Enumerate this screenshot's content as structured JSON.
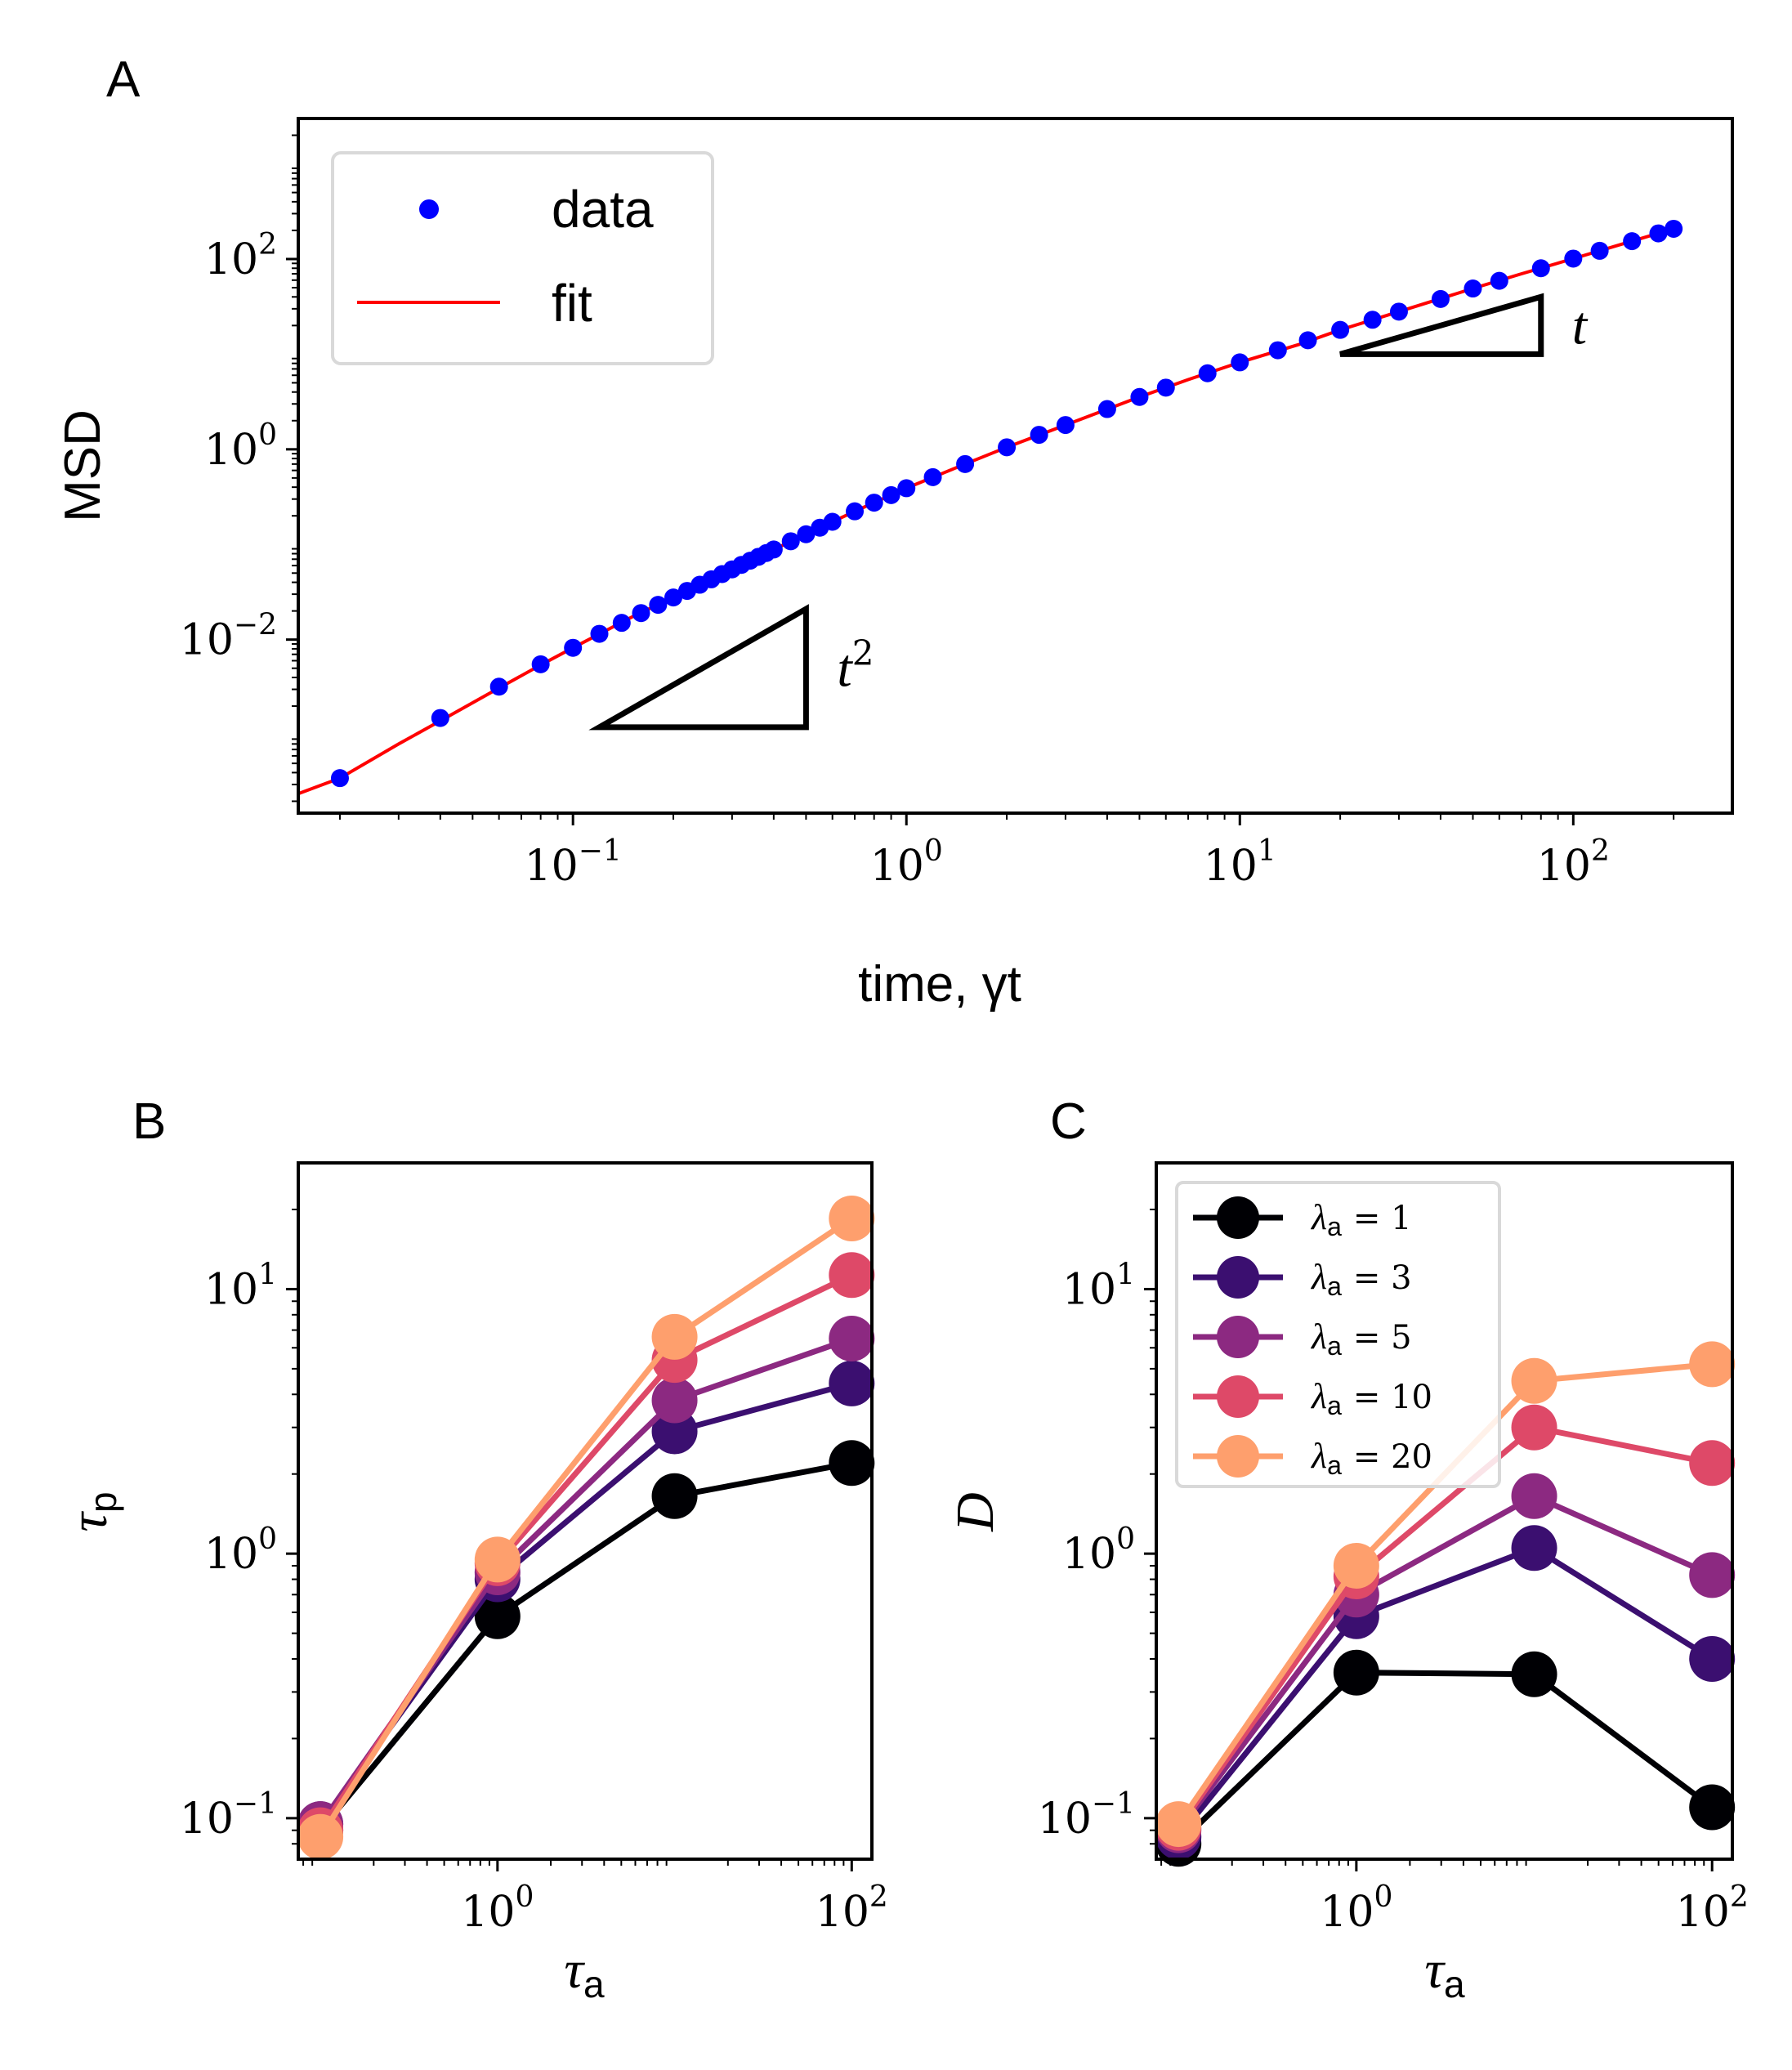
{
  "panel_labels": [
    "A",
    "B",
    "C"
  ],
  "chart_data": [
    {
      "id": "A",
      "type": "scatter",
      "title": "",
      "xlabel": "time, γt",
      "ylabel": "MSD",
      "xscale": "log",
      "yscale": "log",
      "xlim": [
        0.015,
        300
      ],
      "ylim": [
        0.00015,
        3000
      ],
      "xticks": [
        {
          "value": 0.1,
          "base": "10",
          "exp": "−1"
        },
        {
          "value": 1,
          "base": "10",
          "exp": "0"
        },
        {
          "value": 10,
          "base": "10",
          "exp": "1"
        },
        {
          "value": 100,
          "base": "10",
          "exp": "2"
        }
      ],
      "yticks": [
        {
          "value": 0.01,
          "base": "10",
          "exp": "−2"
        },
        {
          "value": 1,
          "base": "10",
          "exp": "0"
        },
        {
          "value": 100,
          "base": "10",
          "exp": "2"
        }
      ],
      "legend": {
        "position": "top-left",
        "entries": [
          "data",
          "fit"
        ]
      },
      "series": [
        {
          "name": "data",
          "kind": "markers",
          "color": "#0000ff",
          "x": [
            0.02,
            0.04,
            0.06,
            0.08,
            0.1,
            0.12,
            0.14,
            0.16,
            0.18,
            0.2,
            0.22,
            0.24,
            0.26,
            0.28,
            0.3,
            0.32,
            0.34,
            0.36,
            0.38,
            0.4,
            0.45,
            0.5,
            0.55,
            0.6,
            0.7,
            0.8,
            0.9,
            1.0,
            1.2,
            1.5,
            2,
            2.5,
            3,
            4,
            5,
            6,
            8,
            10,
            13,
            16,
            20,
            25,
            30,
            40,
            50,
            60,
            80,
            100,
            120,
            150,
            180,
            200
          ],
          "y": [
            0.00035,
            0.0015,
            0.0032,
            0.0055,
            0.0082,
            0.0115,
            0.015,
            0.019,
            0.0232,
            0.0277,
            0.0325,
            0.0377,
            0.043,
            0.0488,
            0.0547,
            0.061,
            0.0675,
            0.0742,
            0.0812,
            0.0885,
            0.108,
            0.128,
            0.15,
            0.173,
            0.223,
            0.275,
            0.33,
            0.39,
            0.51,
            0.7,
            1.05,
            1.42,
            1.8,
            2.65,
            3.55,
            4.45,
            6.3,
            8.2,
            11,
            14,
            18,
            23,
            28,
            38,
            49,
            59,
            80,
            101,
            122,
            154,
            186,
            208
          ]
        },
        {
          "name": "fit",
          "kind": "line",
          "color": "#ff0000",
          "x": [
            0.015,
            0.02,
            0.03,
            0.04,
            0.06,
            0.08,
            0.1,
            0.15,
            0.2,
            0.3,
            0.4,
            0.5,
            0.7,
            1,
            1.5,
            2,
            3,
            5,
            7,
            10,
            15,
            20,
            30,
            50,
            70,
            100,
            150,
            200
          ],
          "y": [
            0.00024,
            0.00035,
            0.0008,
            0.0014,
            0.0031,
            0.0054,
            0.0082,
            0.0172,
            0.0279,
            0.055,
            0.0885,
            0.128,
            0.223,
            0.39,
            0.7,
            1.05,
            1.8,
            3.55,
            5.4,
            8.2,
            12.6,
            18,
            28,
            49,
            70,
            101,
            154,
            208
          ]
        }
      ],
      "annotations": [
        {
          "kind": "slope-triangle",
          "label_base": "t",
          "label_exp": "2",
          "x": [
            0.12,
            0.5
          ],
          "y": [
            0.0012,
            0.021
          ]
        },
        {
          "kind": "slope-triangle",
          "label_base": "t",
          "label_exp": "",
          "x": [
            20,
            80
          ],
          "y": [
            10,
            40
          ]
        }
      ]
    },
    {
      "id": "B",
      "type": "line",
      "title": "",
      "xlabel_base": "τ",
      "xlabel_sub": "a",
      "ylabel_base": "τ",
      "ylabel_sub": "p",
      "xscale": "log",
      "yscale": "log",
      "xlim": [
        0.075,
        130
      ],
      "ylim": [
        0.07,
        30
      ],
      "xticks": [
        {
          "value": 1,
          "base": "10",
          "exp": "0"
        },
        {
          "value": 100,
          "base": "10",
          "exp": "2"
        }
      ],
      "yticks": [
        {
          "value": 0.1,
          "base": "10",
          "exp": "−1"
        },
        {
          "value": 1,
          "base": "10",
          "exp": "0"
        },
        {
          "value": 10,
          "base": "10",
          "exp": "1"
        }
      ],
      "x": [
        0.1,
        1,
        10,
        100
      ],
      "series": [
        {
          "name": "λa = 1",
          "color": "#000004",
          "values": [
            0.09,
            0.58,
            1.65,
            2.2
          ]
        },
        {
          "name": "λa = 3",
          "color": "#3b0f70",
          "values": [
            0.095,
            0.8,
            2.9,
            4.4
          ]
        },
        {
          "name": "λa = 5",
          "color": "#8c2981",
          "values": [
            0.095,
            0.85,
            3.8,
            6.5
          ]
        },
        {
          "name": "λa = 10",
          "color": "#de4968",
          "values": [
            0.09,
            0.92,
            5.4,
            11.3
          ]
        },
        {
          "name": "λa = 20",
          "color": "#fe9f6d",
          "values": [
            0.085,
            0.95,
            6.6,
            18.5
          ]
        }
      ]
    },
    {
      "id": "C",
      "type": "line",
      "title": "",
      "xlabel_base": "τ",
      "xlabel_sub": "a",
      "ylabel": "D",
      "xscale": "log",
      "yscale": "log",
      "xlim": [
        0.075,
        130
      ],
      "ylim": [
        0.07,
        30
      ],
      "xticks": [
        {
          "value": 1,
          "base": "10",
          "exp": "0"
        },
        {
          "value": 100,
          "base": "10",
          "exp": "2"
        }
      ],
      "yticks": [
        {
          "value": 0.1,
          "base": "10",
          "exp": "−1"
        },
        {
          "value": 1,
          "base": "10",
          "exp": "0"
        },
        {
          "value": 10,
          "base": "10",
          "exp": "1"
        }
      ],
      "legend": {
        "position": "top-left"
      },
      "x": [
        0.1,
        1,
        10,
        100
      ],
      "series": [
        {
          "name": "λa = 1",
          "label_sym": "λ",
          "label_sub": "a",
          "label_val": "= 1",
          "color": "#000004",
          "values": [
            0.08,
            0.355,
            0.35,
            0.11
          ]
        },
        {
          "name": "λa = 3",
          "label_sym": "λ",
          "label_sub": "a",
          "label_val": "= 3",
          "color": "#3b0f70",
          "values": [
            0.085,
            0.58,
            1.05,
            0.4
          ]
        },
        {
          "name": "λa = 5",
          "label_sym": "λ",
          "label_sub": "a",
          "label_val": "= 5",
          "color": "#8c2981",
          "values": [
            0.09,
            0.7,
            1.65,
            0.83
          ]
        },
        {
          "name": "λa = 10",
          "label_sym": "λ",
          "label_sub": "a",
          "label_val": "= 10",
          "color": "#de4968",
          "values": [
            0.092,
            0.82,
            3.0,
            2.2
          ]
        },
        {
          "name": "λa = 20",
          "label_sym": "λ",
          "label_sub": "a",
          "label_val": "= 20",
          "color": "#fe9f6d",
          "values": [
            0.095,
            0.9,
            4.5,
            5.2
          ]
        }
      ]
    }
  ]
}
